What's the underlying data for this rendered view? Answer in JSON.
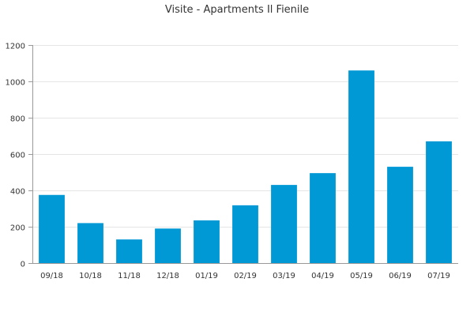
{
  "chart_data": {
    "type": "bar",
    "title": "Visite - Apartments Il Fienile",
    "xlabel": "",
    "ylabel": "",
    "categories": [
      "09/18",
      "10/18",
      "11/18",
      "12/18",
      "01/19",
      "02/19",
      "03/19",
      "04/19",
      "05/19",
      "06/19",
      "07/19"
    ],
    "values": [
      375,
      220,
      130,
      190,
      235,
      318,
      430,
      495,
      1060,
      530,
      670
    ],
    "ylim": [
      0,
      1200
    ],
    "yticks": [
      "0",
      "200",
      "400",
      "600",
      "800",
      "1000",
      "1200"
    ],
    "grid": true,
    "bar_color": "#0099d6",
    "grid_color": "#e5e5e5",
    "axis_color": "#999999"
  }
}
